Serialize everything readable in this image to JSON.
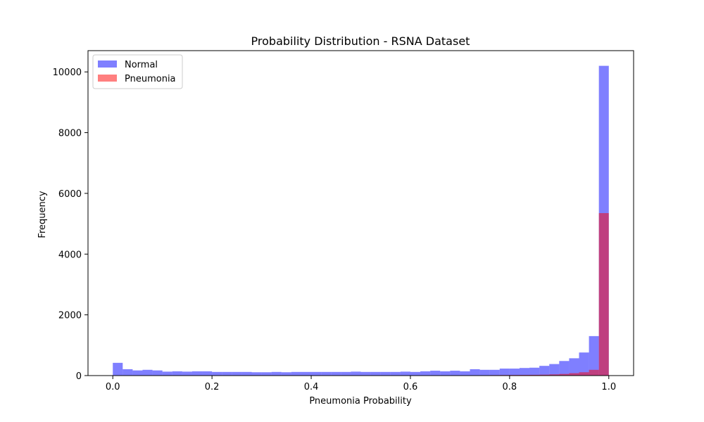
{
  "chart_data": {
    "type": "bar",
    "title": "Probability Distribution - RSNA Dataset",
    "xlabel": "Pneumonia Probability",
    "ylabel": "Frequency",
    "xlim": [
      -0.05,
      1.05
    ],
    "ylim": [
      0,
      10700
    ],
    "x_ticks": [
      0.0,
      0.2,
      0.4,
      0.6,
      0.8,
      1.0
    ],
    "x_tick_labels": [
      "0.0",
      "0.2",
      "0.4",
      "0.6",
      "0.8",
      "1.0"
    ],
    "y_ticks": [
      0,
      2000,
      4000,
      6000,
      8000,
      10000
    ],
    "y_tick_labels": [
      "0",
      "2000",
      "4000",
      "6000",
      "8000",
      "10000"
    ],
    "bin_edges_start": 0.0,
    "bin_width": 0.02,
    "grid": false,
    "legend_placement": "upper-left",
    "series": [
      {
        "name": "Normal",
        "color": "#0000ff",
        "alpha": 0.5,
        "values": [
          420,
          210,
          170,
          190,
          170,
          130,
          140,
          130,
          140,
          140,
          120,
          120,
          120,
          120,
          110,
          110,
          120,
          110,
          120,
          120,
          120,
          120,
          120,
          120,
          130,
          120,
          120,
          120,
          120,
          130,
          120,
          140,
          160,
          140,
          160,
          140,
          210,
          190,
          190,
          230,
          230,
          250,
          260,
          320,
          380,
          480,
          570,
          760,
          1300,
          10200
        ]
      },
      {
        "name": "Pneumonia",
        "color": "#ff0000",
        "alpha": 0.5,
        "values": [
          0,
          0,
          0,
          0,
          0,
          0,
          0,
          0,
          0,
          0,
          0,
          0,
          0,
          0,
          0,
          0,
          0,
          0,
          0,
          0,
          0,
          0,
          0,
          0,
          0,
          0,
          0,
          0,
          0,
          0,
          0,
          0,
          0,
          2,
          5,
          8,
          10,
          12,
          15,
          18,
          20,
          22,
          25,
          30,
          40,
          55,
          80,
          110,
          190,
          5350
        ]
      }
    ]
  }
}
